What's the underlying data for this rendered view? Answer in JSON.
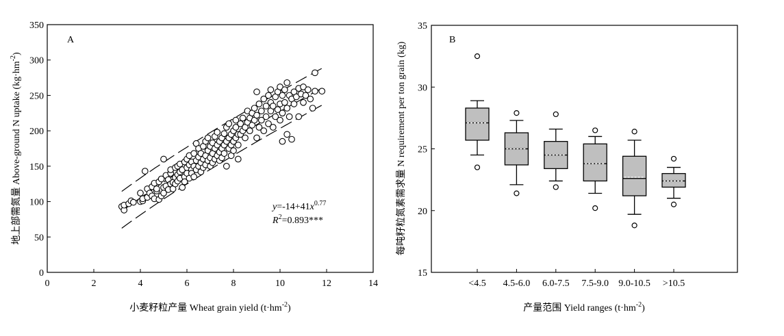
{
  "chart_data": [
    {
      "type": "scatter",
      "panel_label": "A",
      "xlabel": "小麦籽粒产量 Wheat grain yield (t·hm",
      "xlabel_sup": "-2",
      "xlabel_tail": ")",
      "ylabel": "地上部需氮量 Above-ground N uptake (kg·hm",
      "ylabel_sup": "-2",
      "ylabel_tail": ")",
      "xlim": [
        0,
        14
      ],
      "ylim": [
        0,
        350
      ],
      "xticks": [
        0,
        2,
        4,
        6,
        8,
        10,
        12,
        14
      ],
      "yticks": [
        0,
        50,
        100,
        150,
        200,
        250,
        300,
        350
      ],
      "equation": {
        "y_italic": "y",
        "main": "=-14+41",
        "x_italic": "x",
        "exponent": "0.77",
        "r_italic": "R",
        "r_sup": "2",
        "r_value": "=0.893***"
      },
      "fit": {
        "a": -14,
        "b": 41,
        "c": 0.77,
        "x_range": [
          3.2,
          11.8
        ]
      },
      "bounds": [
        {
          "offset": 28,
          "style": "dashed"
        },
        {
          "offset": -24,
          "style": "dashed"
        }
      ],
      "points": [
        [
          3.2,
          93
        ],
        [
          3.3,
          88
        ],
        [
          3.3,
          95
        ],
        [
          3.5,
          97
        ],
        [
          3.6,
          101
        ],
        [
          3.7,
          99
        ],
        [
          4.0,
          112
        ],
        [
          4.0,
          100
        ],
        [
          4.1,
          101
        ],
        [
          4.1,
          104
        ],
        [
          4.2,
          143
        ],
        [
          4.3,
          118
        ],
        [
          4.3,
          106
        ],
        [
          4.4,
          112
        ],
        [
          4.5,
          108
        ],
        [
          4.5,
          121
        ],
        [
          4.6,
          126
        ],
        [
          4.6,
          104
        ],
        [
          4.7,
          115
        ],
        [
          4.7,
          118
        ],
        [
          4.8,
          128
        ],
        [
          4.8,
          103
        ],
        [
          4.9,
          132
        ],
        [
          4.9,
          108
        ],
        [
          5.0,
          120
        ],
        [
          5.0,
          112
        ],
        [
          5.0,
          160
        ],
        [
          5.1,
          137
        ],
        [
          5.1,
          122
        ],
        [
          5.2,
          131
        ],
        [
          5.2,
          117
        ],
        [
          5.3,
          140
        ],
        [
          5.3,
          125
        ],
        [
          5.3,
          145
        ],
        [
          5.4,
          127
        ],
        [
          5.4,
          118
        ],
        [
          5.5,
          148
        ],
        [
          5.5,
          134
        ],
        [
          5.5,
          125
        ],
        [
          5.6,
          150
        ],
        [
          5.6,
          138
        ],
        [
          5.6,
          129
        ],
        [
          5.7,
          142
        ],
        [
          5.7,
          133
        ],
        [
          5.7,
          153
        ],
        [
          5.8,
          120
        ],
        [
          5.8,
          145
        ],
        [
          5.9,
          135
        ],
        [
          5.9,
          156
        ],
        [
          5.9,
          128
        ],
        [
          6.0,
          148
        ],
        [
          6.0,
          160
        ],
        [
          6.0,
          140
        ],
        [
          6.1,
          152
        ],
        [
          6.1,
          133
        ],
        [
          6.1,
          165
        ],
        [
          6.2,
          145
        ],
        [
          6.2,
          156
        ],
        [
          6.2,
          140
        ],
        [
          6.3,
          168
        ],
        [
          6.3,
          150
        ],
        [
          6.3,
          135
        ],
        [
          6.4,
          158
        ],
        [
          6.4,
          145
        ],
        [
          6.4,
          182
        ],
        [
          6.5,
          163
        ],
        [
          6.5,
          150
        ],
        [
          6.5,
          175
        ],
        [
          6.6,
          142
        ],
        [
          6.6,
          168
        ],
        [
          6.6,
          155
        ],
        [
          6.7,
          178
        ],
        [
          6.7,
          160
        ],
        [
          6.7,
          148
        ],
        [
          6.8,
          185
        ],
        [
          6.8,
          165
        ],
        [
          6.8,
          152
        ],
        [
          6.9,
          172
        ],
        [
          6.9,
          158
        ],
        [
          6.9,
          190
        ],
        [
          7.0,
          178
        ],
        [
          7.0,
          162
        ],
        [
          7.0,
          150
        ],
        [
          7.1,
          183
        ],
        [
          7.1,
          168
        ],
        [
          7.1,
          155
        ],
        [
          7.2,
          192
        ],
        [
          7.2,
          175
        ],
        [
          7.2,
          160
        ],
        [
          7.3,
          180
        ],
        [
          7.3,
          165
        ],
        [
          7.3,
          198
        ],
        [
          7.4,
          185
        ],
        [
          7.4,
          170
        ],
        [
          7.4,
          158
        ],
        [
          7.5,
          190
        ],
        [
          7.5,
          175
        ],
        [
          7.5,
          162
        ],
        [
          7.6,
          196
        ],
        [
          7.6,
          180
        ],
        [
          7.6,
          168
        ],
        [
          7.7,
          205
        ],
        [
          7.7,
          185
        ],
        [
          7.7,
          150
        ],
        [
          7.8,
          190
        ],
        [
          7.8,
          175
        ],
        [
          7.8,
          210
        ],
        [
          7.9,
          195
        ],
        [
          7.9,
          180
        ],
        [
          7.9,
          165
        ],
        [
          8.0,
          200
        ],
        [
          8.0,
          185
        ],
        [
          8.0,
          172
        ],
        [
          8.1,
          205
        ],
        [
          8.1,
          190
        ],
        [
          8.1,
          215
        ],
        [
          8.2,
          195
        ],
        [
          8.2,
          180
        ],
        [
          8.2,
          160
        ],
        [
          8.3,
          210
        ],
        [
          8.3,
          195
        ],
        [
          8.4,
          200
        ],
        [
          8.4,
          218
        ],
        [
          8.5,
          205
        ],
        [
          8.5,
          190
        ],
        [
          8.6,
          212
        ],
        [
          8.6,
          228
        ],
        [
          8.7,
          218
        ],
        [
          8.7,
          200
        ],
        [
          8.8,
          225
        ],
        [
          8.8,
          208
        ],
        [
          8.9,
          232
        ],
        [
          8.9,
          215
        ],
        [
          9.0,
          190
        ],
        [
          9.0,
          222
        ],
        [
          9.0,
          255
        ],
        [
          9.1,
          205
        ],
        [
          9.1,
          238
        ],
        [
          9.2,
          215
        ],
        [
          9.2,
          228
        ],
        [
          9.3,
          245
        ],
        [
          9.3,
          200
        ],
        [
          9.4,
          235
        ],
        [
          9.4,
          220
        ],
        [
          9.5,
          250
        ],
        [
          9.5,
          210
        ],
        [
          9.6,
          228
        ],
        [
          9.6,
          240
        ],
        [
          9.6,
          258
        ],
        [
          9.7,
          205
        ],
        [
          9.7,
          235
        ],
        [
          9.8,
          248
        ],
        [
          9.8,
          220
        ],
        [
          9.9,
          255
        ],
        [
          9.9,
          230
        ],
        [
          10.0,
          262
        ],
        [
          10.0,
          238
        ],
        [
          10.0,
          215
        ],
        [
          10.1,
          250
        ],
        [
          10.1,
          225
        ],
        [
          10.1,
          185
        ],
        [
          10.2,
          258
        ],
        [
          10.2,
          240
        ],
        [
          10.3,
          268
        ],
        [
          10.3,
          232
        ],
        [
          10.3,
          195
        ],
        [
          10.4,
          250
        ],
        [
          10.4,
          220
        ],
        [
          10.5,
          245
        ],
        [
          10.5,
          188
        ],
        [
          10.6,
          255
        ],
        [
          10.6,
          238
        ],
        [
          10.7,
          248
        ],
        [
          10.8,
          260
        ],
        [
          10.8,
          220
        ],
        [
          10.9,
          252
        ],
        [
          11.0,
          240
        ],
        [
          11.0,
          262
        ],
        [
          11.1,
          250
        ],
        [
          11.2,
          258
        ],
        [
          11.3,
          245
        ],
        [
          11.4,
          232
        ],
        [
          11.5,
          282
        ],
        [
          11.5,
          256
        ],
        [
          11.8,
          256
        ]
      ]
    },
    {
      "type": "box",
      "panel_label": "B",
      "xlabel": "产量范围 Yield ranges (t·hm",
      "xlabel_sup": "-2",
      "xlabel_tail": ")",
      "ylabel": "每吨籽粒氮素需求量 N requirement per ton grain (kg)",
      "ylim": [
        15,
        35
      ],
      "yticks": [
        15,
        20,
        25,
        30,
        35
      ],
      "categories": [
        "<4.5",
        "4.5-6.0",
        "6.0-7.5",
        "7.5-9.0",
        "9.0-10.5",
        ">10.5"
      ],
      "boxes": [
        {
          "q1": 25.7,
          "median": 27.1,
          "mean": 27.1,
          "q3": 28.3,
          "whisker_low": 24.5,
          "whisker_high": 28.9,
          "outliers": [
            32.5,
            23.5
          ]
        },
        {
          "q1": 23.7,
          "median": 25.0,
          "mean": 25.0,
          "q3": 26.3,
          "whisker_low": 22.1,
          "whisker_high": 27.3,
          "outliers": [
            27.9,
            21.4
          ]
        },
        {
          "q1": 23.4,
          "median": 24.5,
          "mean": 24.5,
          "q3": 25.6,
          "whisker_low": 22.4,
          "whisker_high": 26.6,
          "outliers": [
            27.8,
            21.9
          ]
        },
        {
          "q1": 22.4,
          "median": 23.8,
          "mean": 23.8,
          "q3": 25.4,
          "whisker_low": 21.4,
          "whisker_high": 26.0,
          "outliers": [
            26.5,
            20.2
          ]
        },
        {
          "q1": 21.2,
          "median": 22.6,
          "mean": 22.7,
          "q3": 24.4,
          "whisker_low": 19.7,
          "whisker_high": 25.7,
          "outliers": [
            26.4,
            18.8
          ]
        },
        {
          "q1": 21.9,
          "median": 22.4,
          "mean": 22.4,
          "q3": 23.0,
          "whisker_low": 21.0,
          "whisker_high": 23.5,
          "outliers": [
            24.2,
            20.5
          ]
        }
      ]
    }
  ]
}
